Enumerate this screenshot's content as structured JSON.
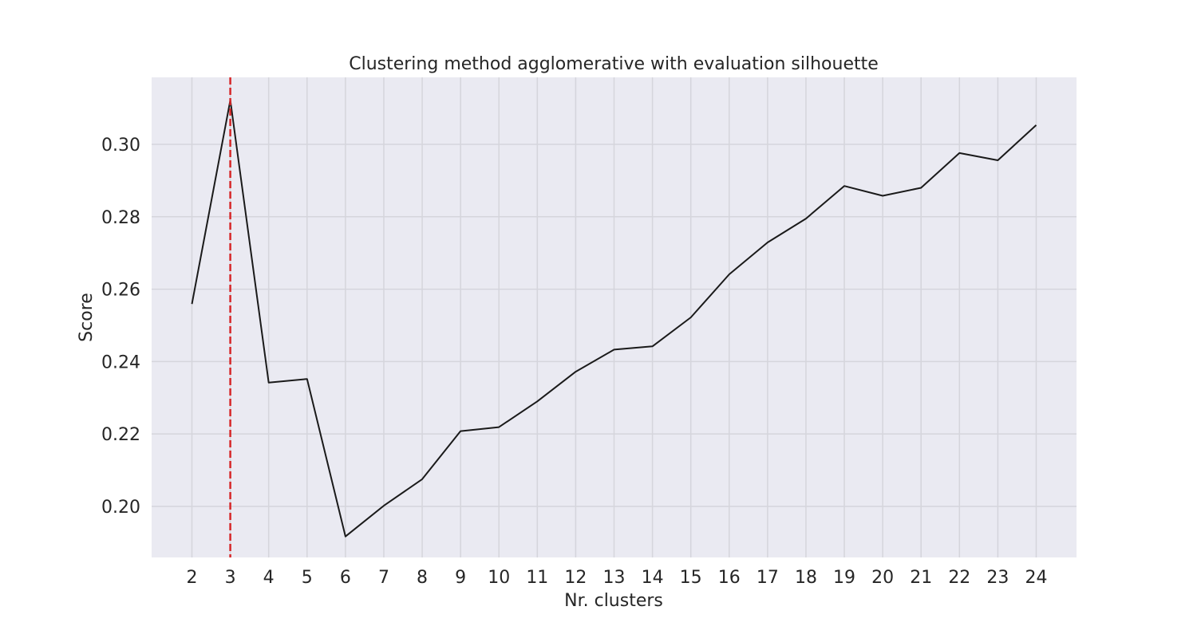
{
  "chart_data": {
    "type": "line",
    "title": "Clustering method agglomerative with evaluation silhouette",
    "xlabel": "Nr. clusters",
    "ylabel": "Score",
    "x": [
      2,
      3,
      4,
      5,
      6,
      7,
      8,
      9,
      10,
      11,
      12,
      13,
      14,
      15,
      16,
      17,
      18,
      19,
      20,
      21,
      22,
      23,
      24
    ],
    "series": [
      {
        "values": [
          0.2559,
          0.3122,
          0.2342,
          0.2352,
          0.1917,
          0.2002,
          0.2075,
          0.2208,
          0.2219,
          0.229,
          0.2372,
          0.2433,
          0.2442,
          0.2522,
          0.2641,
          0.2729,
          0.2795,
          0.2885,
          0.2858,
          0.288,
          0.2976,
          0.2956,
          0.3053
        ],
        "color": "#1a1a1a"
      }
    ],
    "optimal_k": 3,
    "marker_color": "#d62728",
    "xlim": [
      0.95,
      25.05
    ],
    "ylim": [
      0.1859,
      0.3185
    ],
    "yticks": [
      "0.20",
      "0.22",
      "0.24",
      "0.26",
      "0.28",
      "0.30"
    ],
    "ytick_values": [
      0.2,
      0.22,
      0.24,
      0.26,
      0.28,
      0.3
    ],
    "grid": true,
    "background": "#eaeaf2"
  }
}
